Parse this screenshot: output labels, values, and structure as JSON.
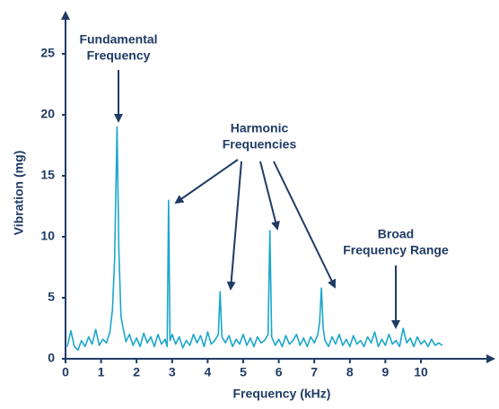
{
  "chart_data": {
    "type": "line",
    "x_label": "Frequency (kHz)",
    "y_label": "Vibration (mg)",
    "x": [
      0.05,
      0.15,
      0.25,
      0.35,
      0.45,
      0.55,
      0.65,
      0.75,
      0.85,
      0.95,
      1.05,
      1.15,
      1.25,
      1.32,
      1.38,
      1.45,
      1.5,
      1.56,
      1.62,
      1.7,
      1.8,
      1.9,
      2.0,
      2.1,
      2.2,
      2.3,
      2.4,
      2.5,
      2.6,
      2.7,
      2.8,
      2.86,
      2.9,
      2.94,
      3.0,
      3.1,
      3.2,
      3.3,
      3.4,
      3.5,
      3.6,
      3.7,
      3.8,
      3.9,
      4.0,
      4.1,
      4.2,
      4.3,
      4.35,
      4.4,
      4.5,
      4.6,
      4.7,
      4.8,
      4.9,
      5.0,
      5.1,
      5.2,
      5.3,
      5.4,
      5.5,
      5.6,
      5.7,
      5.75,
      5.8,
      5.9,
      6.0,
      6.1,
      6.2,
      6.3,
      6.4,
      6.5,
      6.6,
      6.7,
      6.8,
      6.9,
      7.0,
      7.1,
      7.15,
      7.2,
      7.25,
      7.3,
      7.4,
      7.5,
      7.6,
      7.7,
      7.8,
      7.9,
      8.0,
      8.1,
      8.2,
      8.3,
      8.4,
      8.5,
      8.6,
      8.7,
      8.8,
      8.9,
      9.0,
      9.1,
      9.2,
      9.3,
      9.4,
      9.5,
      9.6,
      9.7,
      9.8,
      9.9,
      10.0,
      10.1,
      10.2,
      10.3,
      10.4,
      10.5,
      10.6
    ],
    "values": [
      1.0,
      2.3,
      1.0,
      0.7,
      1.5,
      1.0,
      1.8,
      1.2,
      2.4,
      1.1,
      1.6,
      1.3,
      2.2,
      4.0,
      8.0,
      19.0,
      9.0,
      3.5,
      2.5,
      1.4,
      2.0,
      1.1,
      1.7,
      1.0,
      2.1,
      1.3,
      1.8,
      1.0,
      2.0,
      1.2,
      1.6,
      1.0,
      13.0,
      1.5,
      2.0,
      1.2,
      1.8,
      0.9,
      1.5,
      1.1,
      2.0,
      1.3,
      1.9,
      1.0,
      2.2,
      1.2,
      1.5,
      2.0,
      5.5,
      1.8,
      1.3,
      1.9,
      1.0,
      1.6,
      1.2,
      2.0,
      1.1,
      1.7,
      1.0,
      1.8,
      1.3,
      1.5,
      2.0,
      10.5,
      1.8,
      1.1,
      1.6,
      1.0,
      1.9,
      1.2,
      1.5,
      2.0,
      1.1,
      1.7,
      1.0,
      1.8,
      1.3,
      2.0,
      3.0,
      5.8,
      2.5,
      1.5,
      1.0,
      1.8,
      1.2,
      2.0,
      1.1,
      1.6,
      1.0,
      1.9,
      1.2,
      1.5,
      1.0,
      1.8,
      1.3,
      2.2,
      1.0,
      1.6,
      1.1,
      2.0,
      1.2,
      1.5,
      1.0,
      2.5,
      1.3,
      1.7,
      1.0,
      1.8,
      1.2,
      1.5,
      1.0,
      1.6,
      1.1,
      1.3,
      1.1
    ],
    "color": "#1ba6cc",
    "xlim": [
      0,
      12
    ],
    "ylim": [
      0,
      28.5
    ],
    "xticks": [
      0,
      1,
      2,
      3,
      4,
      5,
      6,
      7,
      8,
      9,
      10
    ],
    "yticks": [
      0,
      5,
      10,
      15,
      20,
      25
    ],
    "annotations": [
      {
        "lines": [
          "Fundamental",
          "Frequency"
        ]
      },
      {
        "lines": [
          "Harmonic",
          "Frequencies"
        ]
      },
      {
        "lines": [
          "Broad",
          "Frequency Range"
        ]
      }
    ]
  }
}
